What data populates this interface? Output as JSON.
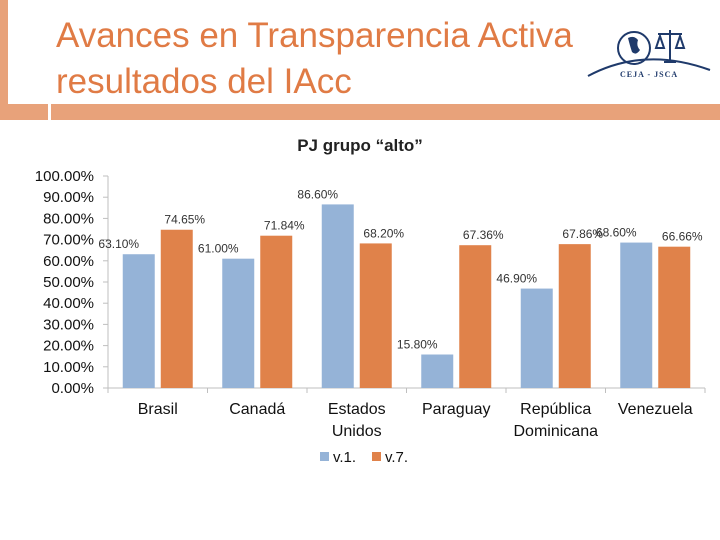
{
  "slide": {
    "title_line1": "Avances en Transparencia Activa",
    "title_line2": "resultados del IAcc",
    "logo_text": "CEJA - JSCA"
  },
  "colors": {
    "accent": "#e8a27a",
    "title": "#e07b45",
    "series1": "#95b3d7",
    "series2": "#e0824a"
  },
  "chart_data": {
    "type": "bar",
    "title": "PJ grupo “alto”",
    "categories": [
      [
        "Brasil"
      ],
      [
        "Canadá"
      ],
      [
        "Estados",
        "Unidos"
      ],
      [
        "Paraguay"
      ],
      [
        "República",
        "Dominicana"
      ],
      [
        "Venezuela"
      ]
    ],
    "series": [
      {
        "name": "v.1.",
        "values": [
          63.1,
          61.0,
          86.6,
          15.8,
          46.9,
          68.6
        ],
        "labels": [
          "63.10%",
          "61.00%",
          "86.60%",
          "15.80%",
          "46.90%",
          "68.60%"
        ]
      },
      {
        "name": "v.7.",
        "values": [
          74.65,
          71.84,
          68.2,
          67.36,
          67.86,
          66.66
        ],
        "labels": [
          "74.65%",
          "71.84%",
          "68.20%",
          "67.36%",
          "67.86%",
          "66.66%"
        ]
      }
    ],
    "ylim": [
      0,
      100
    ],
    "yticks": [
      "0.00%",
      "10.00%",
      "20.00%",
      "30.00%",
      "40.00%",
      "50.00%",
      "60.00%",
      "70.00%",
      "80.00%",
      "90.00%",
      "100.00%"
    ],
    "legend_position": "bottom"
  }
}
